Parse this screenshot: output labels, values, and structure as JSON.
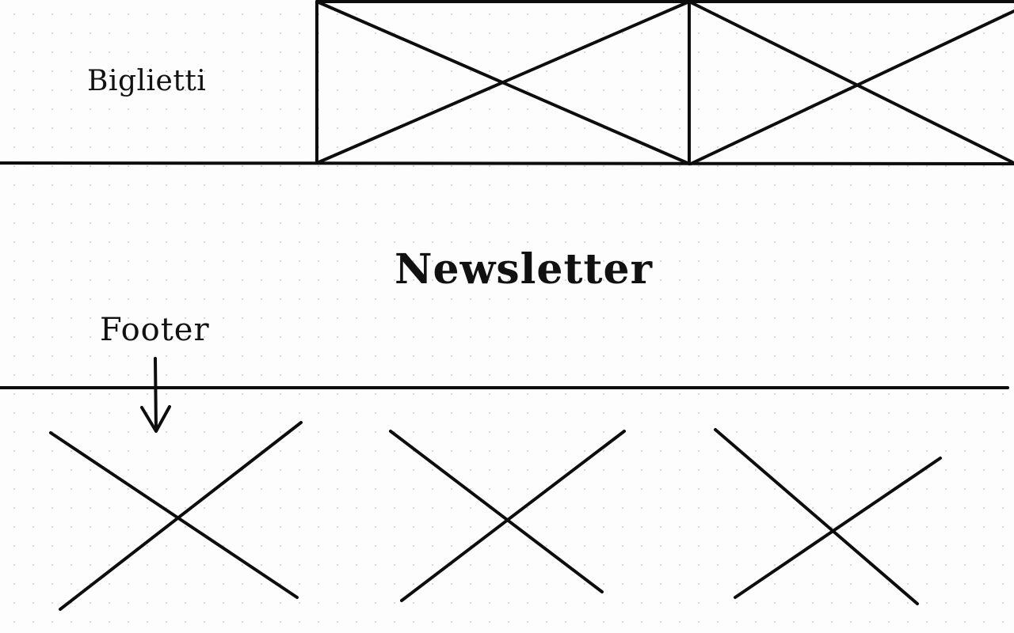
{
  "sections": {
    "tickets": {
      "label": "Biglietti"
    },
    "newsletter": {
      "label": "Newsletter"
    },
    "footer": {
      "label": "Footer"
    }
  },
  "placeholders": {
    "header_images": [
      {
        "icon": "image-placeholder-icon"
      },
      {
        "icon": "image-placeholder-icon"
      }
    ],
    "footer_items": [
      {
        "icon": "cross-placeholder-icon"
      },
      {
        "icon": "cross-placeholder-icon"
      },
      {
        "icon": "cross-placeholder-icon"
      }
    ]
  },
  "colors": {
    "ink": "#0d0d0d",
    "paper": "#fdfdfd",
    "grid_dots": "#d6d6d6"
  }
}
